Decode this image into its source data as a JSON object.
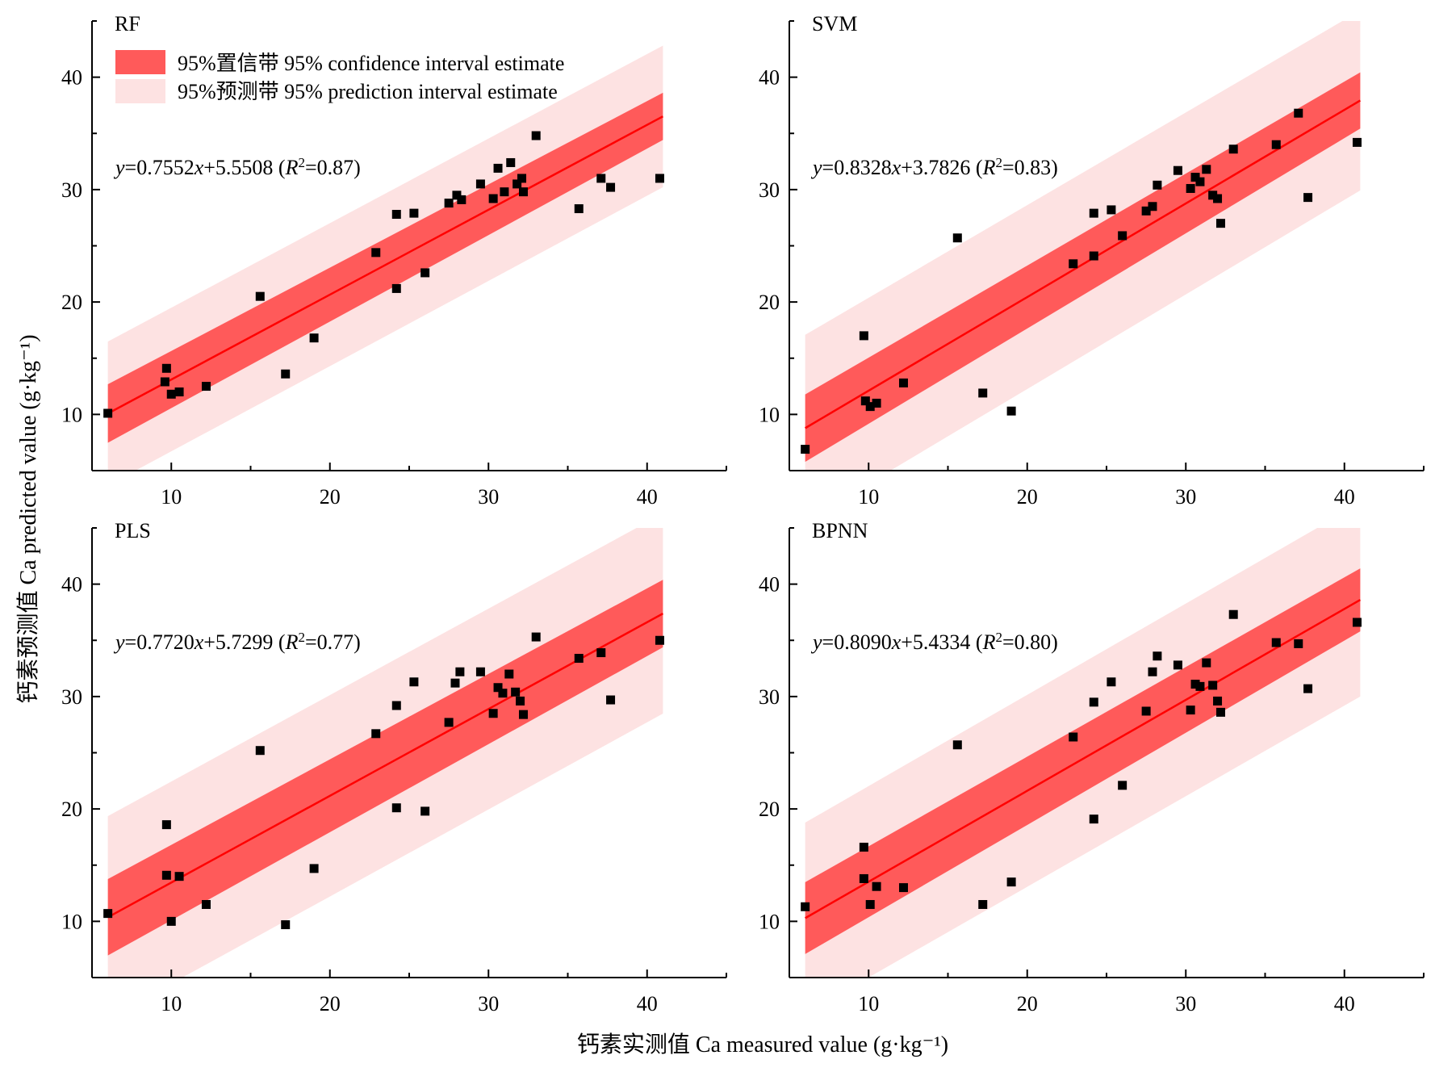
{
  "figure": {
    "ylabel": "钙素预测值 Ca predicted value (g·kg⁻¹)",
    "xlabel": "钙素实测值 Ca measured value (g·kg⁻¹)",
    "legend": {
      "confidence_label": "95%置信带 95% confidence interval estimate",
      "prediction_label": "95%预测带 95% prediction interval estimate"
    },
    "colors": {
      "confidence": "#ff5a5a",
      "prediction": "#fde2e2",
      "fit_line": "#ff0000",
      "points": "#000000"
    }
  },
  "chart_data": [
    {
      "type": "scatter",
      "title": "RF",
      "equation": {
        "slope": "0.7552",
        "intercept": "5.5508",
        "r2": "0.87"
      },
      "xlim": [
        5,
        45
      ],
      "ylim": [
        5,
        45
      ],
      "xticks": [
        10,
        20,
        30,
        40
      ],
      "yticks": [
        10,
        20,
        30,
        40
      ],
      "fit": {
        "slope": 0.7552,
        "intercept": 5.5508
      },
      "confidence_band": {
        "x": [
          6,
          41
        ],
        "half_width": [
          2.6,
          2.1
        ]
      },
      "prediction_band": {
        "x": [
          6,
          41
        ],
        "half_width": [
          6.4,
          6.3
        ]
      },
      "points": [
        [
          6.0,
          10.1
        ],
        [
          9.7,
          14.1
        ],
        [
          9.6,
          12.9
        ],
        [
          10.0,
          11.8
        ],
        [
          10.5,
          12.0
        ],
        [
          12.2,
          12.5
        ],
        [
          15.6,
          20.5
        ],
        [
          17.2,
          13.6
        ],
        [
          19.0,
          16.8
        ],
        [
          22.9,
          24.4
        ],
        [
          24.2,
          27.8
        ],
        [
          24.2,
          21.2
        ],
        [
          25.3,
          27.9
        ],
        [
          26.0,
          22.6
        ],
        [
          27.5,
          28.8
        ],
        [
          28.0,
          29.5
        ],
        [
          28.3,
          29.1
        ],
        [
          29.5,
          30.5
        ],
        [
          30.3,
          29.2
        ],
        [
          30.6,
          31.9
        ],
        [
          31.0,
          29.8
        ],
        [
          31.4,
          32.4
        ],
        [
          31.8,
          30.5
        ],
        [
          32.1,
          31.0
        ],
        [
          32.2,
          29.8
        ],
        [
          33.0,
          34.8
        ],
        [
          35.7,
          28.3
        ],
        [
          37.1,
          31.0
        ],
        [
          37.7,
          30.2
        ],
        [
          40.8,
          31.0
        ]
      ]
    },
    {
      "type": "scatter",
      "title": "SVM",
      "equation": {
        "slope": "0.8328",
        "intercept": "3.7826",
        "r2": "0.83"
      },
      "xlim": [
        5,
        45
      ],
      "ylim": [
        5,
        45
      ],
      "xticks": [
        10,
        20,
        30,
        40
      ],
      "yticks": [
        10,
        20,
        30,
        40
      ],
      "fit": {
        "slope": 0.8328,
        "intercept": 3.7826
      },
      "confidence_band": {
        "x": [
          6,
          41
        ],
        "half_width": [
          3.0,
          2.5
        ]
      },
      "prediction_band": {
        "x": [
          6,
          41
        ],
        "half_width": [
          8.3,
          8.0
        ]
      },
      "points": [
        [
          6.0,
          6.9
        ],
        [
          9.7,
          17.0
        ],
        [
          9.8,
          11.2
        ],
        [
          10.1,
          10.7
        ],
        [
          10.5,
          11.0
        ],
        [
          12.2,
          12.8
        ],
        [
          15.6,
          25.7
        ],
        [
          17.2,
          11.9
        ],
        [
          19.0,
          10.3
        ],
        [
          22.9,
          23.4
        ],
        [
          24.2,
          27.9
        ],
        [
          24.2,
          24.1
        ],
        [
          25.3,
          28.2
        ],
        [
          26.0,
          25.9
        ],
        [
          27.5,
          28.1
        ],
        [
          27.9,
          28.5
        ],
        [
          28.2,
          30.4
        ],
        [
          29.5,
          31.7
        ],
        [
          30.3,
          30.1
        ],
        [
          30.6,
          31.1
        ],
        [
          30.9,
          30.7
        ],
        [
          31.3,
          31.8
        ],
        [
          31.7,
          29.5
        ],
        [
          32.0,
          29.2
        ],
        [
          32.2,
          27.0
        ],
        [
          33.0,
          33.6
        ],
        [
          35.7,
          34.0
        ],
        [
          37.1,
          36.8
        ],
        [
          37.7,
          29.3
        ],
        [
          40.8,
          34.2
        ]
      ]
    },
    {
      "type": "scatter",
      "title": "PLS",
      "equation": {
        "slope": "0.7720",
        "intercept": "5.7299",
        "r2": "0.77"
      },
      "xlim": [
        5,
        45
      ],
      "ylim": [
        5,
        45
      ],
      "xticks": [
        10,
        20,
        30,
        40
      ],
      "yticks": [
        10,
        20,
        30,
        40
      ],
      "fit": {
        "slope": 0.772,
        "intercept": 5.7299
      },
      "confidence_band": {
        "x": [
          6,
          41
        ],
        "half_width": [
          3.4,
          3.0
        ]
      },
      "prediction_band": {
        "x": [
          6,
          41
        ],
        "half_width": [
          9.0,
          8.9
        ]
      },
      "points": [
        [
          6.0,
          10.7
        ],
        [
          9.7,
          18.6
        ],
        [
          9.7,
          14.1
        ],
        [
          10.0,
          10.0
        ],
        [
          10.5,
          14.0
        ],
        [
          12.2,
          11.5
        ],
        [
          15.6,
          25.2
        ],
        [
          17.2,
          9.7
        ],
        [
          19.0,
          14.7
        ],
        [
          22.9,
          26.7
        ],
        [
          24.2,
          29.2
        ],
        [
          24.2,
          20.1
        ],
        [
          25.3,
          31.3
        ],
        [
          26.0,
          19.8
        ],
        [
          27.5,
          27.7
        ],
        [
          27.9,
          31.2
        ],
        [
          28.2,
          32.2
        ],
        [
          29.5,
          32.2
        ],
        [
          30.3,
          28.5
        ],
        [
          30.6,
          30.8
        ],
        [
          30.9,
          30.3
        ],
        [
          31.3,
          32.0
        ],
        [
          31.7,
          30.4
        ],
        [
          32.0,
          29.6
        ],
        [
          32.2,
          28.4
        ],
        [
          33.0,
          35.3
        ],
        [
          35.7,
          33.4
        ],
        [
          37.1,
          33.9
        ],
        [
          37.7,
          29.7
        ],
        [
          40.8,
          35.0
        ]
      ]
    },
    {
      "type": "scatter",
      "title": "BPNN",
      "equation": {
        "slope": "0.8090",
        "intercept": "5.4334",
        "r2": "0.80"
      },
      "xlim": [
        5,
        45
      ],
      "ylim": [
        5,
        45
      ],
      "xticks": [
        10,
        20,
        30,
        40
      ],
      "yticks": [
        10,
        20,
        30,
        40
      ],
      "fit": {
        "slope": 0.809,
        "intercept": 5.4334
      },
      "confidence_band": {
        "x": [
          6,
          41
        ],
        "half_width": [
          3.2,
          2.8
        ]
      },
      "prediction_band": {
        "x": [
          6,
          41
        ],
        "half_width": [
          8.5,
          8.6
        ]
      },
      "points": [
        [
          6.0,
          11.3
        ],
        [
          9.7,
          16.6
        ],
        [
          9.7,
          13.8
        ],
        [
          10.1,
          11.5
        ],
        [
          10.5,
          13.1
        ],
        [
          12.2,
          13.0
        ],
        [
          15.6,
          25.7
        ],
        [
          17.2,
          11.5
        ],
        [
          19.0,
          13.5
        ],
        [
          22.9,
          26.4
        ],
        [
          24.2,
          29.5
        ],
        [
          24.2,
          19.1
        ],
        [
          25.3,
          31.3
        ],
        [
          26.0,
          22.1
        ],
        [
          27.5,
          28.7
        ],
        [
          27.9,
          32.2
        ],
        [
          28.2,
          33.6
        ],
        [
          29.5,
          32.8
        ],
        [
          30.3,
          28.8
        ],
        [
          30.6,
          31.1
        ],
        [
          30.9,
          30.9
        ],
        [
          31.3,
          33.0
        ],
        [
          31.7,
          31.0
        ],
        [
          32.0,
          29.6
        ],
        [
          32.2,
          28.6
        ],
        [
          33.0,
          37.3
        ],
        [
          35.7,
          34.8
        ],
        [
          37.1,
          34.7
        ],
        [
          37.7,
          30.7
        ],
        [
          40.8,
          36.6
        ]
      ]
    }
  ]
}
